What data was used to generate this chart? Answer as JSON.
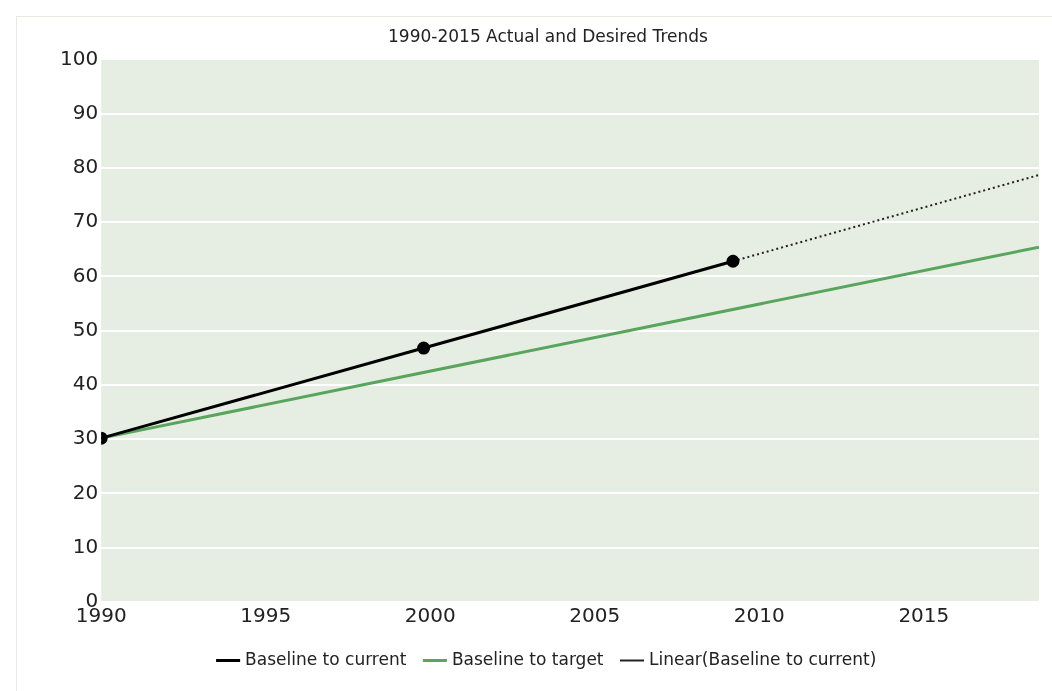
{
  "chart_data": {
    "type": "line",
    "title": "1990-2015 Actual and Desired Trends",
    "xlim": [
      1990,
      2018.5
    ],
    "xticks": [
      1990,
      1995,
      2000,
      2005,
      2010,
      2015
    ],
    "ylim": [
      0,
      100
    ],
    "yticks": [
      0,
      10,
      20,
      30,
      40,
      50,
      60,
      70,
      80,
      90,
      100
    ],
    "grid": "y",
    "legend": "bottom",
    "series": [
      {
        "name": "Baseline to current",
        "color": "#000000",
        "x": [
          1990,
          1999.8,
          2009.2
        ],
        "values": [
          30.2,
          46.8,
          62.8
        ],
        "marker": "circle",
        "line_style": "solid"
      },
      {
        "name": "Baseline to target",
        "color": "#5aa55e",
        "x": [
          1990,
          2018.5
        ],
        "values": [
          30.2,
          65.4
        ],
        "marker": "none",
        "line_style": "solid"
      },
      {
        "name": "Linear(Baseline to current)",
        "color": "#222222",
        "x": [
          2009.2,
          2018.5
        ],
        "values": [
          62.8,
          78.7
        ],
        "marker": "none",
        "line_style": "dotted"
      }
    ]
  }
}
